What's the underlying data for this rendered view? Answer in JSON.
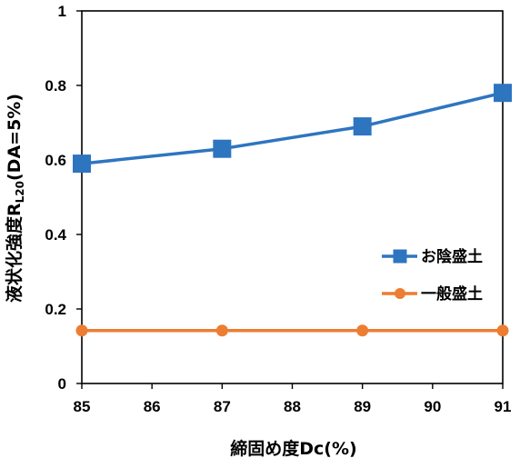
{
  "chart_data": {
    "type": "line",
    "x": [
      85,
      87,
      89,
      91
    ],
    "xlabel": "締固め度Dc(%)",
    "ylabel": {
      "main": "液状化強度R",
      "subscript": "L20",
      "suffix": "(DA=5%)"
    },
    "xlim": [
      85,
      91
    ],
    "ylim": [
      0,
      1
    ],
    "xticks": [
      85,
      86,
      87,
      88,
      89,
      90,
      91
    ],
    "xtick_labels": [
      "85",
      "86",
      "87",
      "88",
      "89",
      "90",
      "91"
    ],
    "yticks": [
      0,
      0.2,
      0.4,
      0.6,
      0.8,
      1
    ],
    "ytick_labels": [
      "0",
      "0.2",
      "0.4",
      "0.6",
      "0.8",
      "1"
    ],
    "grid": false,
    "legend_position": "right-middle",
    "series": [
      {
        "name": "お陰盛土",
        "values": [
          0.59,
          0.63,
          0.69,
          0.78
        ],
        "color": "#2E75C0",
        "marker": "square"
      },
      {
        "name": "一般盛土",
        "values": [
          0.142,
          0.142,
          0.142,
          0.142
        ],
        "color": "#ED7D31",
        "marker": "circle"
      }
    ]
  }
}
